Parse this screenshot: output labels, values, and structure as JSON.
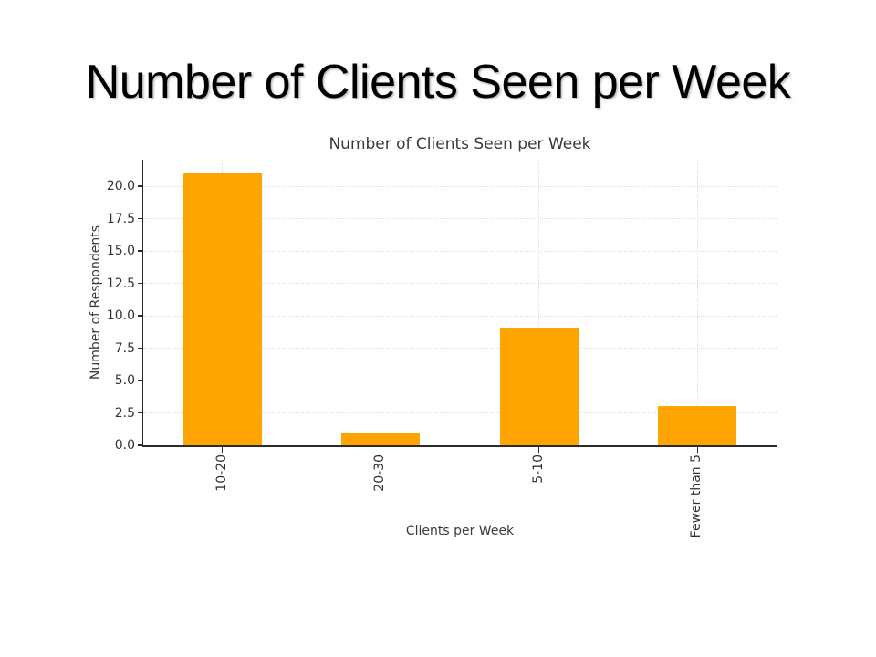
{
  "slide": {
    "title": "Number of Clients Seen per Week",
    "background": "#ffffff"
  },
  "chart_data": {
    "type": "bar",
    "title": "Number of Clients Seen per Week",
    "categories": [
      "10-20",
      "20-30",
      "5-10",
      "Fewer than 5"
    ],
    "values": [
      21,
      1,
      9,
      3
    ],
    "xlabel": "Clients per Week",
    "ylabel": "Number of Respondents",
    "ylim": [
      0,
      22.05
    ],
    "yticks": [
      0,
      2.5,
      5,
      7.5,
      10,
      12.5,
      15,
      17.5,
      20
    ],
    "ytick_labels": [
      "0.0",
      "2.5",
      "5.0",
      "7.5",
      "10.0",
      "12.5",
      "15.0",
      "17.5",
      "20.0"
    ],
    "xtick_rotation_degrees": 90,
    "grid": true,
    "legend": "none",
    "bar_color": "#FFA502",
    "grid_color": "#dcdcdc",
    "axis_color": "#2a2a2a",
    "text_color": "#3a3a3a"
  }
}
